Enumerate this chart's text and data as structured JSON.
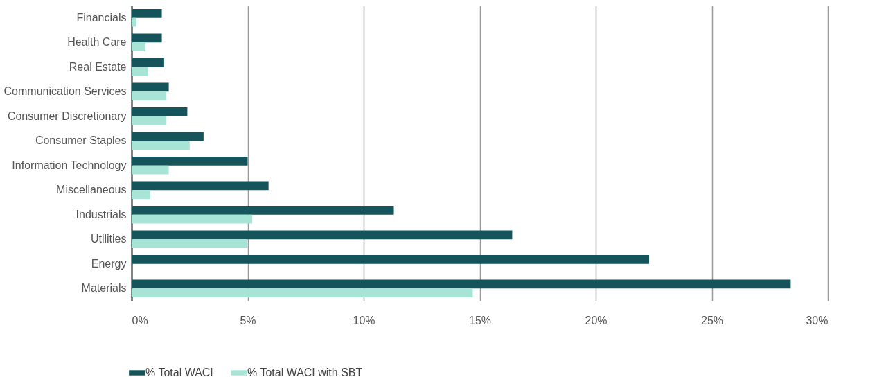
{
  "chart_data": {
    "type": "bar",
    "orientation": "horizontal",
    "categories": [
      "Financials",
      "Health Care",
      "Real Estate",
      "Communication Services",
      "Consumer Discretionary",
      "Consumer Staples",
      "Information Technology",
      "Miscellaneous",
      "Industrials",
      "Utilities",
      "Energy",
      "Materials"
    ],
    "series": [
      {
        "name": "% Total WACI",
        "color": "#15545a",
        "values": [
          1.3,
          1.3,
          1.4,
          1.6,
          2.4,
          3.1,
          5.0,
          5.9,
          11.3,
          16.4,
          22.3,
          28.4
        ]
      },
      {
        "name": "% Total WACI with SBT",
        "color": "#a8e4d5",
        "values": [
          0.2,
          0.6,
          0.7,
          1.5,
          1.5,
          2.5,
          1.6,
          0.8,
          5.2,
          5.0,
          null,
          14.7
        ]
      }
    ],
    "xlim": [
      0,
      30
    ],
    "xticks": [
      {
        "value": 0,
        "label": "0%"
      },
      {
        "value": 5,
        "label": "5%"
      },
      {
        "value": 10,
        "label": "10%"
      },
      {
        "value": 15,
        "label": "15%"
      },
      {
        "value": 20,
        "label": "20%"
      },
      {
        "value": 25,
        "label": "25%"
      },
      {
        "value": 30,
        "label": "30%"
      }
    ],
    "grid": "x",
    "legend": "bottom left"
  }
}
